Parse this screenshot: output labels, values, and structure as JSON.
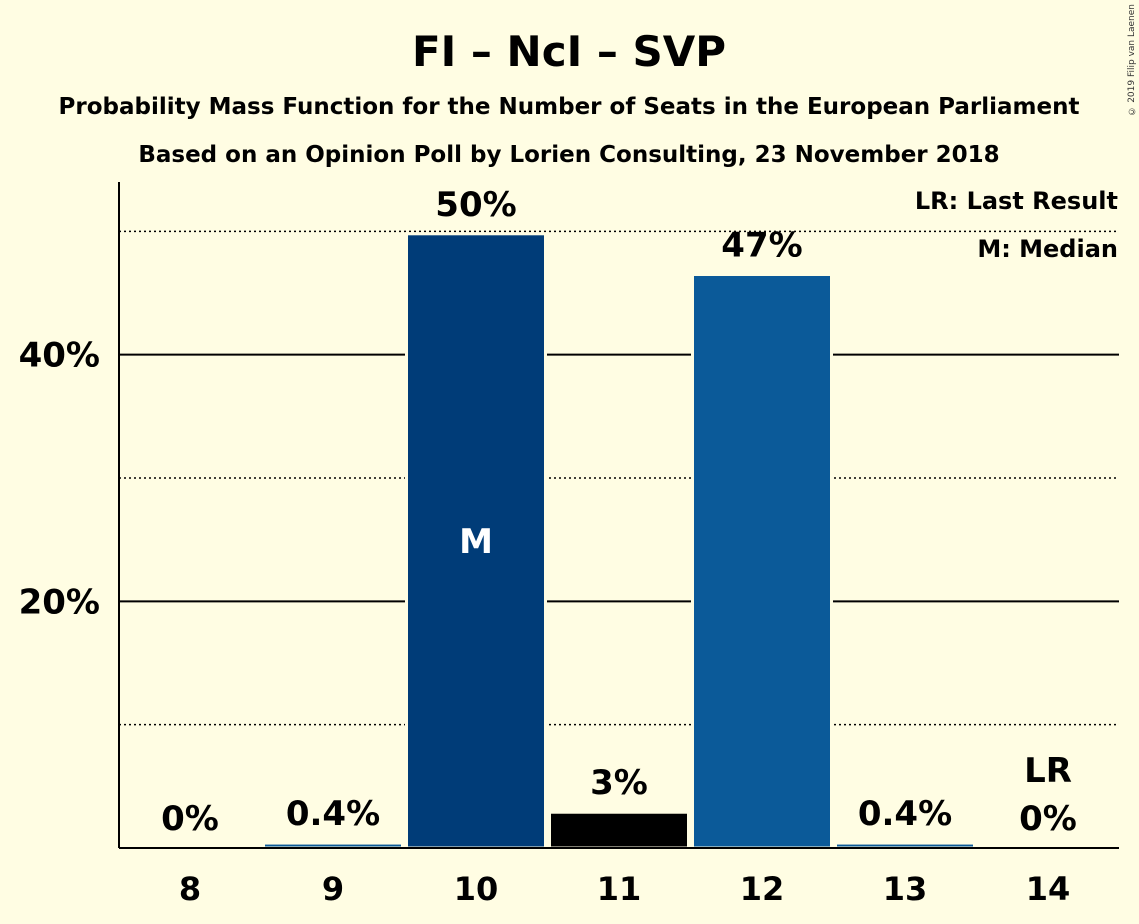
{
  "copyright": "© 2019 Filip van Laenen",
  "chart_data": {
    "type": "bar",
    "title": "FI – NcI – SVP",
    "subtitle_1": "Probability Mass Function for the Number of Seats in the European Parliament",
    "subtitle_2": "Based on an Opinion Poll by Lorien Consulting, 23 November 2018",
    "categories": [
      "8",
      "9",
      "10",
      "11",
      "12",
      "13",
      "14"
    ],
    "values": [
      0,
      0.4,
      49.8,
      2.9,
      46.5,
      0.4,
      0
    ],
    "value_labels": [
      "0%",
      "0.4%",
      "50%",
      "3%",
      "47%",
      "0.4%",
      "0%"
    ],
    "bar_colors": [
      "#0B5A99",
      "#0B5A99",
      "#003C78",
      "#000000",
      "#0B5A99",
      "#0B5A99",
      "#0B5A99"
    ],
    "ylim": [
      0,
      54
    ],
    "y_ticks_major": [
      20,
      40
    ],
    "y_tick_labels": [
      "20%",
      "40%"
    ],
    "y_ticks_minor": [
      10,
      30,
      50
    ],
    "median_index": 2,
    "median_marker": "M",
    "last_result_index": 6,
    "last_result_marker": "LR",
    "legend": [
      "LR: Last Result",
      "M: Median"
    ],
    "legend_position": "top-right",
    "grid": true
  }
}
